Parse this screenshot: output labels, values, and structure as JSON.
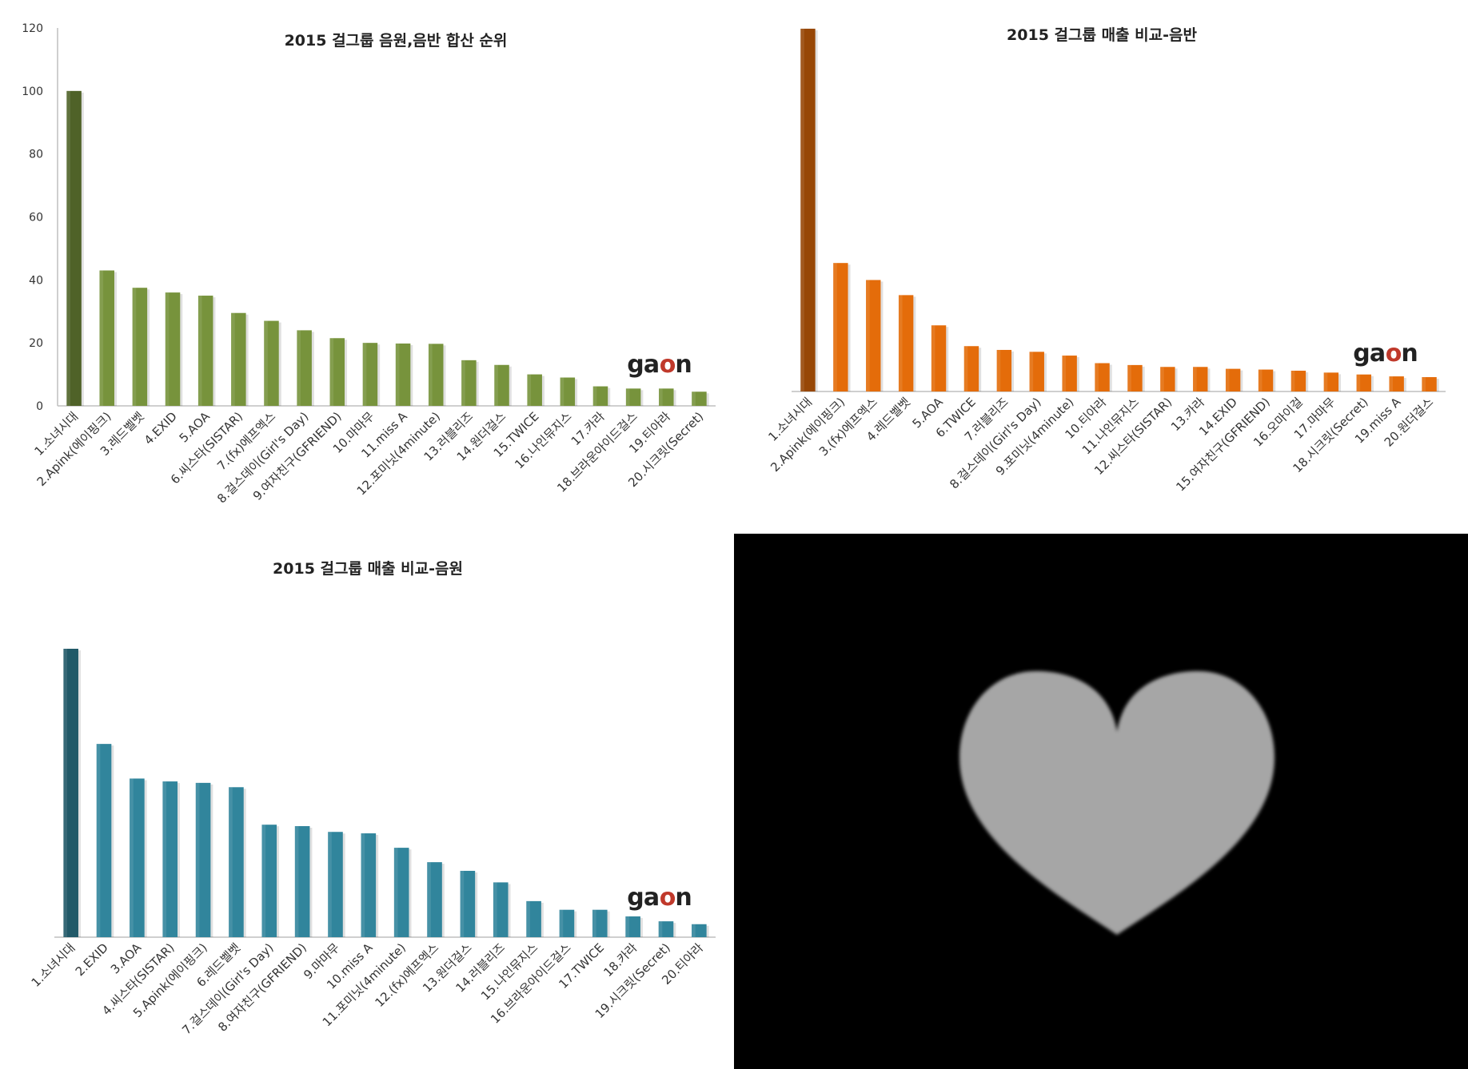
{
  "chart_data": [
    {
      "type": "bar",
      "title": "2015 걸그룹 음원,음반 합산 순위",
      "xlabel": "",
      "ylabel": "",
      "ylim": [
        0,
        120
      ],
      "yticks": [
        0,
        20,
        40,
        60,
        80,
        100,
        120
      ],
      "grid": false,
      "categories": [
        "1.소녀시대",
        "2.Apink(에이핑크)",
        "3.레드벨벳",
        "4.EXID",
        "5.AOA",
        "6.씨스타(SISTAR)",
        "7.(fx)에프엑스",
        "8.걸스데이(Girl's Day)",
        "9.여자친구(GFRIEND)",
        "10.마마무",
        "11.miss A",
        "12.포미닛(4minute)",
        "13.러블리즈",
        "14.원더걸스",
        "15.TWICE",
        "16.나인뮤지스",
        "17.카라",
        "18.브라운아이드걸스",
        "19.티아라",
        "20.시크릿(Secret)"
      ],
      "values": [
        100,
        43,
        37.5,
        36,
        35,
        29.5,
        27,
        24,
        21.5,
        20,
        19.8,
        19.7,
        14.5,
        13,
        10,
        9,
        6.2,
        5.5,
        5.5,
        4.5
      ],
      "colors": {
        "first": "#4f6228",
        "rest": "#77933c"
      },
      "watermark": "gaon"
    },
    {
      "type": "bar",
      "title": "2015 걸그룹 매출 비교-음반",
      "xlabel": "",
      "ylabel": "",
      "ylim": [
        0,
        100
      ],
      "grid": false,
      "categories": [
        "1.소녀시대",
        "2.Apink(에이핑크)",
        "3.(fx)에프엑스",
        "4.레드벨벳",
        "5.AOA",
        "6.TWICE",
        "7.러블리즈",
        "8.걸스데이(Girl's Day)",
        "9.포미닛(4minute)",
        "10.티아라",
        "11.나인뮤지스",
        "12.씨스타(SISTAR)",
        "13.카라",
        "14.EXID",
        "15.여자친구(GFRIEND)",
        "16.오마이걸",
        "17.마마무",
        "18.시크릿(Secret)",
        "19.miss A",
        "20.원더걸스"
      ],
      "values": [
        96,
        34,
        29.5,
        25.5,
        17.5,
        12,
        11,
        10.5,
        9.5,
        7.5,
        7,
        6.5,
        6.5,
        6,
        5.8,
        5.5,
        5,
        4.5,
        4,
        3.8
      ],
      "colors": {
        "first": "#974706",
        "rest": "#e46c0a"
      },
      "watermark": "gaon"
    },
    {
      "type": "bar",
      "title": "2015 걸그룹 매출 비교-음원",
      "xlabel": "",
      "ylabel": "",
      "ylim": [
        0,
        100
      ],
      "grid": false,
      "categories": [
        "1.소녀시대",
        "2.EXID",
        "3.AOA",
        "4.씨스타(SISTAR)",
        "5.Apink(에이핑크)",
        "6.레드벨벳",
        "7.걸스데이(Girl's Day)",
        "8.여자친구(GFRIEND)",
        "9.마마무",
        "10.miss A",
        "11.포미닛(4minute)",
        "12.(fx)에프엑스",
        "13.원더걸스",
        "14.러블리즈",
        "15.나인뮤지스",
        "16.브라운아이드걸스",
        "17.TWICE",
        "18.카라",
        "19.시크릿(Secret)",
        "20.티아라"
      ],
      "values": [
        100,
        67,
        55,
        54,
        53.5,
        52,
        39,
        38.5,
        36.5,
        36,
        31,
        26,
        23,
        19,
        12.5,
        9.5,
        9.5,
        7.2,
        5.5,
        4.5
      ],
      "colors": {
        "first": "#215968",
        "rest": "#31859c"
      },
      "watermark": "gaon"
    }
  ],
  "heart_panel": {
    "shape": "heart-icon",
    "colors": {
      "background": "#000000",
      "heart": "#a6a6a6"
    }
  }
}
